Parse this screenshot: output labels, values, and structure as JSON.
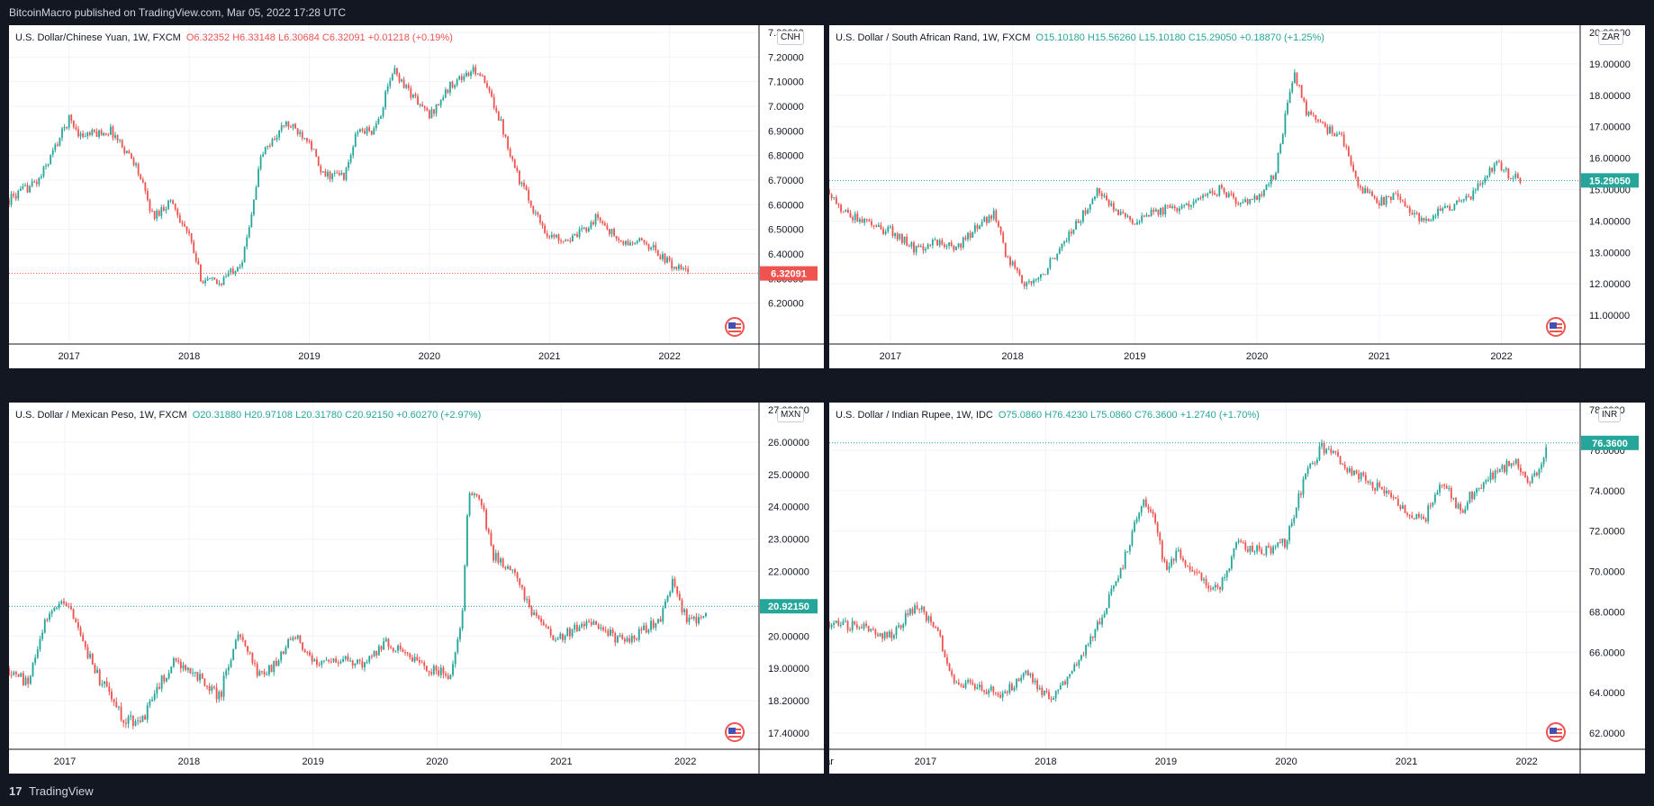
{
  "header": {
    "publisher_line": "BitcoinMacro published on TradingView.com, Mar 05, 2022 17:28 UTC"
  },
  "footer": {
    "logo_glyph": "17",
    "brand": "TradingView"
  },
  "colors": {
    "up": "#26a69a",
    "down": "#ef5350",
    "grid": "#f0f3fa",
    "axis_text": "#131722"
  },
  "chart_data": [
    {
      "type": "candlestick",
      "symbol": "U.S. Dollar/Chinese Yuan, 1W, FXCM",
      "ohlc": {
        "o": "O6.32352",
        "h": "H6.33148",
        "l": "L6.30684",
        "c": "C6.32091",
        "chg": "+0.01218 (+0.19%)"
      },
      "direction": "down",
      "currency": "CNH",
      "last_price": "6.32091",
      "ylim": [
        6.1,
        7.3
      ],
      "y_ticks": [
        "7.30000",
        "7.20000",
        "7.10000",
        "7.00000",
        "6.90000",
        "6.80000",
        "6.70000",
        "6.60000",
        "6.50000",
        "6.40000",
        "6.30000",
        "6.20000"
      ],
      "y_tick_values": [
        7.3,
        7.2,
        7.1,
        7.0,
        6.9,
        6.8,
        6.7,
        6.6,
        6.5,
        6.4,
        6.3,
        6.2
      ],
      "x_ticks": [
        "2017",
        "2018",
        "2019",
        "2020",
        "2021",
        "2022"
      ],
      "x_tick_times": [
        2017.0,
        2018.0,
        2019.0,
        2020.0,
        2021.0,
        2022.0
      ],
      "xlim": [
        2016.5,
        2022.7
      ],
      "path": [
        [
          2016.5,
          6.62
        ],
        [
          2016.75,
          6.7
        ],
        [
          2016.95,
          6.9
        ],
        [
          2017.0,
          6.95
        ],
        [
          2017.1,
          6.88
        ],
        [
          2017.35,
          6.9
        ],
        [
          2017.55,
          6.77
        ],
        [
          2017.7,
          6.55
        ],
        [
          2017.85,
          6.62
        ],
        [
          2018.0,
          6.47
        ],
        [
          2018.1,
          6.3
        ],
        [
          2018.25,
          6.28
        ],
        [
          2018.45,
          6.38
        ],
        [
          2018.6,
          6.8
        ],
        [
          2018.8,
          6.93
        ],
        [
          2019.0,
          6.87
        ],
        [
          2019.1,
          6.72
        ],
        [
          2019.3,
          6.72
        ],
        [
          2019.4,
          6.9
        ],
        [
          2019.55,
          6.9
        ],
        [
          2019.7,
          7.15
        ],
        [
          2019.85,
          7.05
        ],
        [
          2020.0,
          6.96
        ],
        [
          2020.2,
          7.1
        ],
        [
          2020.4,
          7.15
        ],
        [
          2020.55,
          7.0
        ],
        [
          2020.75,
          6.7
        ],
        [
          2020.9,
          6.55
        ],
        [
          2021.0,
          6.47
        ],
        [
          2021.2,
          6.46
        ],
        [
          2021.4,
          6.55
        ],
        [
          2021.6,
          6.44
        ],
        [
          2021.8,
          6.45
        ],
        [
          2022.0,
          6.36
        ],
        [
          2022.17,
          6.32
        ]
      ]
    },
    {
      "type": "candlestick",
      "symbol": "U.S. Dollar / South African Rand, 1W, FXCM",
      "ohlc": {
        "o": "O15.10180",
        "h": "H15.56260",
        "l": "L15.10180",
        "c": "C15.29050",
        "chg": "+0.18870 (+1.25%)"
      },
      "direction": "up",
      "currency": "ZAR",
      "last_price": "15.29050",
      "ylim": [
        10.6,
        20.0
      ],
      "y_ticks": [
        "20.00000",
        "19.00000",
        "18.00000",
        "17.00000",
        "16.00000",
        "15.00000",
        "14.00000",
        "13.00000",
        "12.00000",
        "11.00000"
      ],
      "y_tick_values": [
        20,
        19,
        18,
        17,
        16,
        15,
        14,
        13,
        12,
        11
      ],
      "x_ticks": [
        "2017",
        "2018",
        "2019",
        "2020",
        "2021",
        "2022"
      ],
      "x_tick_times": [
        2017.0,
        2018.0,
        2019.0,
        2020.0,
        2021.0,
        2022.0
      ],
      "xlim": [
        2016.5,
        2022.6
      ],
      "path": [
        [
          2016.5,
          15.0
        ],
        [
          2016.6,
          14.3
        ],
        [
          2016.85,
          13.8
        ],
        [
          2017.0,
          13.7
        ],
        [
          2017.2,
          13.1
        ],
        [
          2017.35,
          13.3
        ],
        [
          2017.55,
          13.2
        ],
        [
          2017.7,
          13.8
        ],
        [
          2017.85,
          14.2
        ],
        [
          2017.95,
          12.9
        ],
        [
          2018.1,
          12.0
        ],
        [
          2018.25,
          12.3
        ],
        [
          2018.4,
          13.3
        ],
        [
          2018.55,
          14.0
        ],
        [
          2018.7,
          15.0
        ],
        [
          2018.85,
          14.2
        ],
        [
          2019.0,
          14.0
        ],
        [
          2019.15,
          14.3
        ],
        [
          2019.35,
          14.4
        ],
        [
          2019.55,
          14.8
        ],
        [
          2019.7,
          15.0
        ],
        [
          2019.85,
          14.6
        ],
        [
          2020.0,
          14.7
        ],
        [
          2020.15,
          15.5
        ],
        [
          2020.3,
          18.8
        ],
        [
          2020.4,
          17.5
        ],
        [
          2020.55,
          17.0
        ],
        [
          2020.7,
          16.6
        ],
        [
          2020.85,
          15.0
        ],
        [
          2021.0,
          14.6
        ],
        [
          2021.15,
          14.8
        ],
        [
          2021.35,
          14.0
        ],
        [
          2021.5,
          14.3
        ],
        [
          2021.7,
          14.6
        ],
        [
          2021.85,
          15.2
        ],
        [
          2021.95,
          15.9
        ],
        [
          2022.05,
          15.5
        ],
        [
          2022.17,
          15.29
        ]
      ]
    },
    {
      "type": "candlestick",
      "symbol": "U.S. Dollar / Mexican Peso, 1W, FXCM",
      "ohlc": {
        "o": "O20.31880",
        "h": "H20.97108",
        "l": "L20.31780",
        "c": "C20.92150",
        "chg": "+0.60270 (+2.97%)"
      },
      "direction": "up",
      "currency": "MXN",
      "last_price": "20.92150",
      "scale": "nonlinear",
      "y_ticks": [
        "27.00000",
        "26.00000",
        "25.00000",
        "24.00000",
        "23.00000",
        "22.00000",
        "21.00000",
        "20.00000",
        "19.00000",
        "18.20000",
        "17.40000"
      ],
      "y_tick_values": [
        27,
        26,
        25,
        24,
        23,
        22,
        21,
        20,
        19,
        18.2,
        17.4
      ],
      "x_ticks": [
        "2017",
        "2018",
        "2019",
        "2020",
        "2021",
        "2022"
      ],
      "x_tick_times": [
        2017.0,
        2018.0,
        2019.0,
        2020.0,
        2021.0,
        2022.0
      ],
      "xlim": [
        2016.55,
        2022.55
      ],
      "path": [
        [
          2016.55,
          19.0
        ],
        [
          2016.7,
          18.6
        ],
        [
          2016.85,
          20.5
        ],
        [
          2017.0,
          21.2
        ],
        [
          2017.1,
          20.2
        ],
        [
          2017.25,
          18.9
        ],
        [
          2017.45,
          17.8
        ],
        [
          2017.6,
          17.6
        ],
        [
          2017.75,
          18.5
        ],
        [
          2017.9,
          19.3
        ],
        [
          2018.0,
          18.9
        ],
        [
          2018.15,
          18.6
        ],
        [
          2018.25,
          18.3
        ],
        [
          2018.4,
          20.2
        ],
        [
          2018.55,
          18.8
        ],
        [
          2018.7,
          19.1
        ],
        [
          2018.85,
          20.1
        ],
        [
          2019.0,
          19.2
        ],
        [
          2019.2,
          19.3
        ],
        [
          2019.4,
          19.2
        ],
        [
          2019.6,
          19.8
        ],
        [
          2019.8,
          19.3
        ],
        [
          2020.0,
          18.9
        ],
        [
          2020.1,
          18.8
        ],
        [
          2020.2,
          20.5
        ],
        [
          2020.25,
          24.5
        ],
        [
          2020.35,
          24.2
        ],
        [
          2020.45,
          22.5
        ],
        [
          2020.6,
          22.0
        ],
        [
          2020.8,
          20.5
        ],
        [
          2020.95,
          19.9
        ],
        [
          2021.1,
          20.2
        ],
        [
          2021.25,
          20.5
        ],
        [
          2021.45,
          19.9
        ],
        [
          2021.6,
          20.0
        ],
        [
          2021.8,
          20.5
        ],
        [
          2021.9,
          21.7
        ],
        [
          2022.0,
          20.6
        ],
        [
          2022.1,
          20.4
        ],
        [
          2022.17,
          20.92
        ]
      ]
    },
    {
      "type": "candlestick",
      "symbol": "U.S. Dollar / Indian Rupee, 1W, IDC",
      "ohlc": {
        "o": "O75.0860",
        "h": "H76.4230",
        "l": "L75.0860",
        "c": "C76.3600",
        "chg": "+1.2740 (+1.70%)"
      },
      "direction": "up",
      "currency": "INR",
      "last_price": "76.3600",
      "ylim": [
        62.0,
        78.0
      ],
      "y_ticks": [
        "78.0000",
        "76.0000",
        "74.0000",
        "72.0000",
        "70.0000",
        "68.0000",
        "66.0000",
        "64.0000",
        "62.0000"
      ],
      "y_tick_values": [
        78,
        76,
        74,
        72,
        70,
        68,
        66,
        64,
        62
      ],
      "x_ticks": [
        "ar",
        "2017",
        "2018",
        "2019",
        "2020",
        "2021",
        "2022"
      ],
      "x_tick_times": [
        2016.2,
        2017.0,
        2018.0,
        2019.0,
        2020.0,
        2021.0,
        2022.0
      ],
      "xlim": [
        2016.2,
        2022.4
      ],
      "path": [
        [
          2016.2,
          67.5
        ],
        [
          2016.45,
          67.2
        ],
        [
          2016.7,
          66.8
        ],
        [
          2016.85,
          67.8
        ],
        [
          2016.95,
          68.2
        ],
        [
          2017.1,
          67.0
        ],
        [
          2017.25,
          64.5
        ],
        [
          2017.45,
          64.2
        ],
        [
          2017.65,
          64.0
        ],
        [
          2017.85,
          65.0
        ],
        [
          2017.95,
          64.2
        ],
        [
          2018.05,
          63.7
        ],
        [
          2018.2,
          64.8
        ],
        [
          2018.35,
          66.5
        ],
        [
          2018.5,
          68.2
        ],
        [
          2018.65,
          70.5
        ],
        [
          2018.8,
          73.5
        ],
        [
          2018.9,
          72.5
        ],
        [
          2019.0,
          70.0
        ],
        [
          2019.1,
          71.0
        ],
        [
          2019.3,
          69.5
        ],
        [
          2019.45,
          69.2
        ],
        [
          2019.6,
          71.5
        ],
        [
          2019.75,
          71.0
        ],
        [
          2019.9,
          71.2
        ],
        [
          2020.0,
          71.5
        ],
        [
          2020.15,
          74.5
        ],
        [
          2020.3,
          76.2
        ],
        [
          2020.5,
          75.2
        ],
        [
          2020.65,
          74.5
        ],
        [
          2020.8,
          74.0
        ],
        [
          2021.0,
          73.0
        ],
        [
          2021.15,
          72.6
        ],
        [
          2021.3,
          74.5
        ],
        [
          2021.45,
          73.0
        ],
        [
          2021.6,
          74.3
        ],
        [
          2021.75,
          74.8
        ],
        [
          2021.9,
          75.5
        ],
        [
          2022.0,
          74.5
        ],
        [
          2022.1,
          75.0
        ],
        [
          2022.17,
          76.36
        ]
      ]
    }
  ]
}
